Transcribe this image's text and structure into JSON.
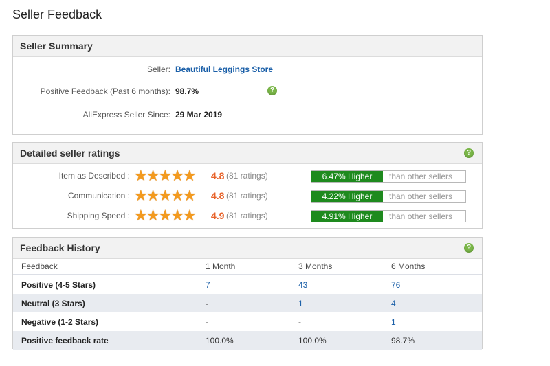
{
  "page": {
    "title": "Seller Feedback"
  },
  "summary": {
    "title": "Seller Summary",
    "seller_label": "Seller:",
    "seller_name": "Beautiful Leggings Store",
    "positive_label": "Positive Feedback (Past 6 months):",
    "positive_value": "98.7%",
    "since_label": "AliExpress Seller Since:",
    "since_value": "29 Mar 2019",
    "help_icon": "?"
  },
  "ratings": {
    "title": "Detailed seller ratings",
    "help_icon": "?",
    "star_glyph": "★",
    "items": [
      {
        "label": "Item as Described :",
        "score": "4.8",
        "count": "(81 ratings)",
        "compare": "6.47% Higher",
        "compare_suffix": "than other sellers"
      },
      {
        "label": "Communication :",
        "score": "4.8",
        "count": "(81 ratings)",
        "compare": "4.22% Higher",
        "compare_suffix": "than other sellers"
      },
      {
        "label": "Shipping Speed :",
        "score": "4.9",
        "count": "(81 ratings)",
        "compare": "4.91% Higher",
        "compare_suffix": "than other sellers"
      }
    ]
  },
  "history": {
    "title": "Feedback History",
    "help_icon": "?",
    "columns": [
      "Feedback",
      "1 Month",
      "3 Months",
      "6 Months"
    ],
    "rows": [
      [
        "Positive (4-5 Stars)",
        "7",
        "43",
        "76"
      ],
      [
        "Neutral (3 Stars)",
        "-",
        "1",
        "4"
      ],
      [
        "Negative (1-2 Stars)",
        "-",
        "-",
        "1"
      ],
      [
        "Positive feedback rate",
        "100.0%",
        "100.0%",
        "98.7%"
      ]
    ]
  },
  "colors": {
    "accent_green": "#1e8a1e",
    "score_orange": "#e8632a",
    "link_blue": "#1a5fa8",
    "star": "#f39a1e"
  }
}
